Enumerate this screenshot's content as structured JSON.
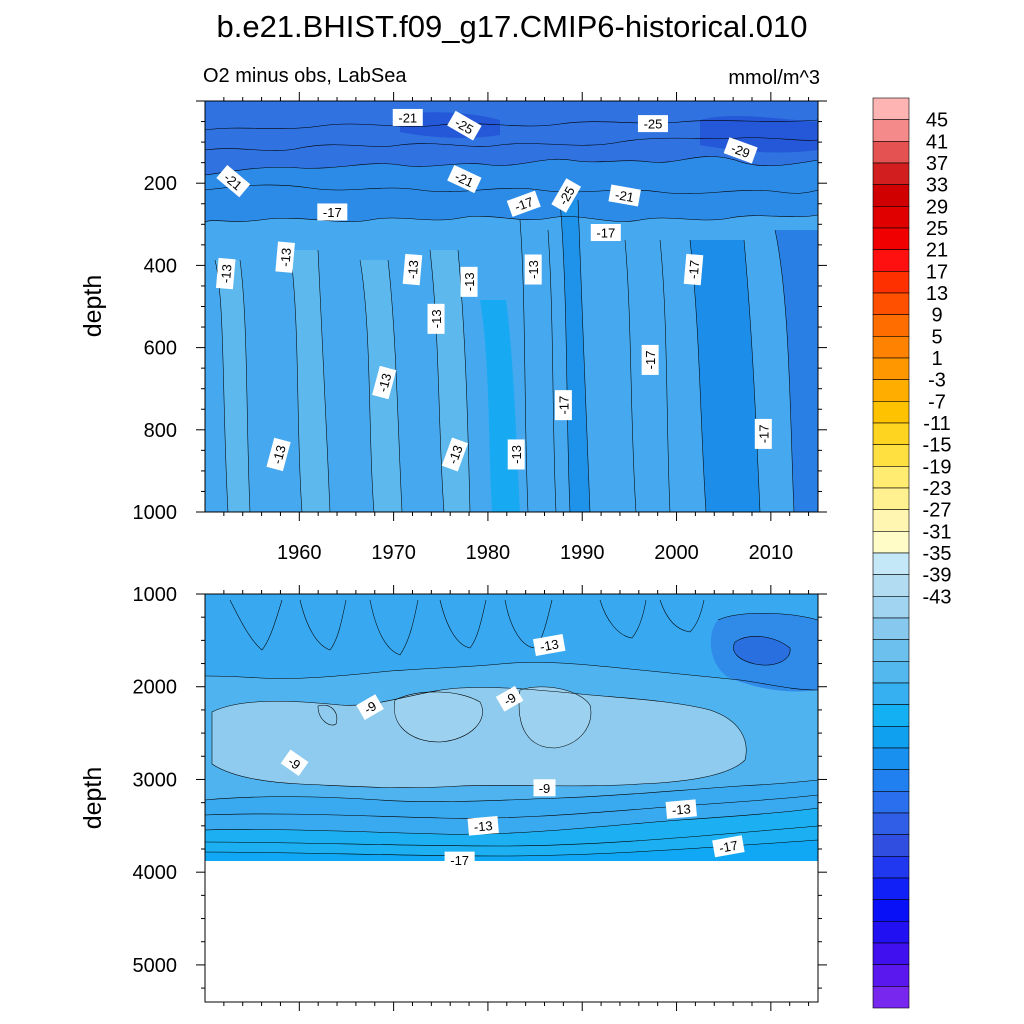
{
  "figure": {
    "title": "b.e21.BHIST.f09_g17.CMIP6-historical.010",
    "subtitle_left": "O2 minus obs, LabSea",
    "subtitle_right": "mmol/m^3"
  },
  "colors": {
    "upper_base": "#3fa6f0",
    "upper_top_band": "#2e6fe0",
    "lower_fill": "#4fb3f0",
    "lower_light": "#8ecbee",
    "lower_bottom": "#0fb1f2",
    "contour_line": "#000000",
    "label_bg": "#ffffff"
  },
  "chart_data": [
    {
      "type": "contour",
      "name": "upper-panel",
      "ylabel": "depth",
      "xlim": [
        1950,
        2015
      ],
      "ylim": [
        1000,
        0
      ],
      "x_ticks": [
        1960,
        1970,
        1980,
        1990,
        2000,
        2010
      ],
      "x_tick_labels": [
        "1960",
        "1970",
        "1980",
        "1990",
        "2000",
        "2010"
      ],
      "y_ticks": [
        200,
        400,
        600,
        800,
        1000
      ],
      "y_tick_labels": [
        "200",
        "400",
        "600",
        "800",
        "1000"
      ],
      "data_extent_depth": [
        20,
        1000
      ],
      "contour_labels": [
        {
          "x": 1971.5,
          "y": 40,
          "text": "-21",
          "rot": 0
        },
        {
          "x": 1977.5,
          "y": 60,
          "text": "-25",
          "rot": 30
        },
        {
          "x": 1997.5,
          "y": 55,
          "text": "-25",
          "rot": 0
        },
        {
          "x": 2006.8,
          "y": 120,
          "text": "-29",
          "rot": 20
        },
        {
          "x": 1953.0,
          "y": 195,
          "text": "-21",
          "rot": 40
        },
        {
          "x": 1977.5,
          "y": 190,
          "text": "-21",
          "rot": 25
        },
        {
          "x": 1963.5,
          "y": 270,
          "text": "-17",
          "rot": 0
        },
        {
          "x": 1988.3,
          "y": 230,
          "text": "-25",
          "rot": -60
        },
        {
          "x": 1983.8,
          "y": 250,
          "text": "-17",
          "rot": -20
        },
        {
          "x": 1994.5,
          "y": 230,
          "text": "-21",
          "rot": 10
        },
        {
          "x": 1992.5,
          "y": 320,
          "text": "-17",
          "rot": 0
        },
        {
          "x": 1952.2,
          "y": 420,
          "text": "-13",
          "rot": -85
        },
        {
          "x": 1958.5,
          "y": 380,
          "text": "-13",
          "rot": -85
        },
        {
          "x": 1972.0,
          "y": 410,
          "text": "-13",
          "rot": -85
        },
        {
          "x": 1978.0,
          "y": 440,
          "text": "-13",
          "rot": -90
        },
        {
          "x": 1984.8,
          "y": 410,
          "text": "-13",
          "rot": -90
        },
        {
          "x": 1974.5,
          "y": 530,
          "text": "-13",
          "rot": -90
        },
        {
          "x": 2001.8,
          "y": 410,
          "text": "-17",
          "rot": -85
        },
        {
          "x": 1997.2,
          "y": 630,
          "text": "-17",
          "rot": -90
        },
        {
          "x": 1969.0,
          "y": 685,
          "text": "-13",
          "rot": -75
        },
        {
          "x": 1988.0,
          "y": 740,
          "text": "-17",
          "rot": -90
        },
        {
          "x": 2009.2,
          "y": 810,
          "text": "-17",
          "rot": -90
        },
        {
          "x": 1957.8,
          "y": 860,
          "text": "-13",
          "rot": -75
        },
        {
          "x": 1976.5,
          "y": 860,
          "text": "-13",
          "rot": -70
        },
        {
          "x": 1983.0,
          "y": 860,
          "text": "-13",
          "rot": -90
        }
      ]
    },
    {
      "type": "contour",
      "name": "lower-panel",
      "ylabel": "depth",
      "xlim": [
        1950,
        2015
      ],
      "ylim": [
        5400,
        1000
      ],
      "y_ticks": [
        1000,
        2000,
        3000,
        4000,
        5000
      ],
      "y_tick_labels": [
        "1000",
        "2000",
        "3000",
        "4000",
        "5000"
      ],
      "data_extent_depth": [
        1000,
        3870
      ],
      "contour_labels": [
        {
          "x": 1986.5,
          "y": 1550,
          "text": "-13",
          "rot": -10
        },
        {
          "x": 1967.5,
          "y": 2220,
          "text": "-9",
          "rot": -30
        },
        {
          "x": 1982.3,
          "y": 2130,
          "text": "-9",
          "rot": -30
        },
        {
          "x": 1959.5,
          "y": 2820,
          "text": "-9",
          "rot": 35
        },
        {
          "x": 1986.0,
          "y": 3090,
          "text": "-9",
          "rot": 0
        },
        {
          "x": 1979.5,
          "y": 3500,
          "text": "-13",
          "rot": -5
        },
        {
          "x": 2000.5,
          "y": 3320,
          "text": "-13",
          "rot": -5
        },
        {
          "x": 1977.0,
          "y": 3870,
          "text": "-17",
          "rot": 0
        },
        {
          "x": 2005.5,
          "y": 3720,
          "text": "-17",
          "rot": -10
        }
      ]
    },
    {
      "type": "colorbar",
      "name": "colorbar",
      "levels_top_to_bottom": [
        "45",
        "41",
        "37",
        "33",
        "29",
        "25",
        "21",
        "17",
        "13",
        "9",
        "5",
        "1",
        "-3",
        "-7",
        "-11",
        "-15",
        "-19",
        "-23",
        "-27",
        "-31",
        "-35",
        "-39",
        "-43"
      ],
      "box_colors_top_to_bottom": [
        "#ffb4b4",
        "#f48a8a",
        "#e45252",
        "#d21e1e",
        "#d00000",
        "#e00000",
        "#f00000",
        "#ff1010",
        "#ff3000",
        "#ff5000",
        "#ff6c00",
        "#ff8200",
        "#ff9800",
        "#ffae00",
        "#ffc200",
        "#ffd420",
        "#ffe040",
        "#ffec70",
        "#fff090",
        "#fff6b2",
        "#fffcc8",
        "#c4e8f8",
        "#b2dcf2",
        "#a0d4f0",
        "#86c8ee",
        "#6cc0ee",
        "#52b8ee",
        "#36b0f0",
        "#14b0f4",
        "#10a0f0",
        "#1890f0",
        "#2080f0",
        "#2a70ee",
        "#305ee6",
        "#304ee0",
        "#2038f0",
        "#1020f6",
        "#0810f8",
        "#2010f2",
        "#4010ee",
        "#5a18ee",
        "#7828ee"
      ]
    }
  ]
}
